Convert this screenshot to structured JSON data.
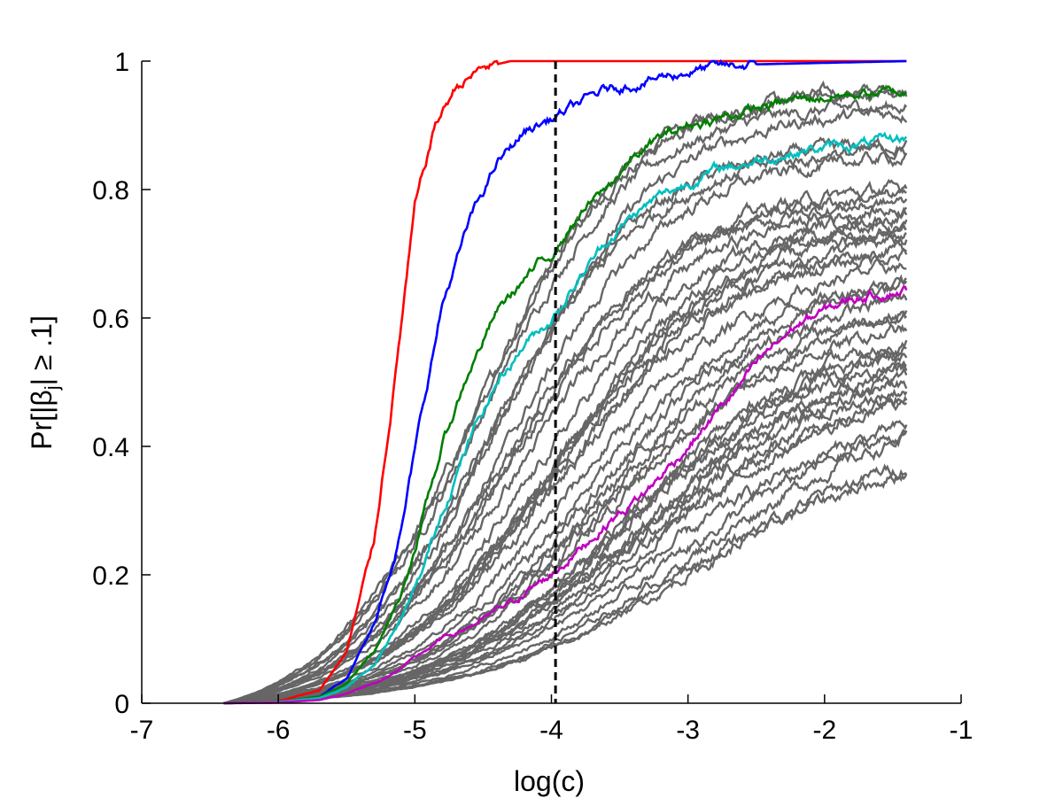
{
  "chart_data": {
    "type": "line",
    "title": "",
    "xlabel": "log(c)",
    "ylabel": "Pr[|β_j| ≥ .1]",
    "ylabel_parts": {
      "pre": "Pr[|",
      "beta": "β",
      "sub": "j",
      "post": "| ≥ .1]"
    },
    "xlim": [
      -7,
      -1
    ],
    "ylim": [
      0,
      1
    ],
    "xticks": [
      -7,
      -6,
      -5,
      -4,
      -3,
      -2,
      -1
    ],
    "xtick_labels": [
      "-7",
      "-6",
      "-5",
      "-4",
      "-3",
      "-2",
      "-1"
    ],
    "yticks": [
      0,
      0.2,
      0.4,
      0.6,
      0.8,
      1
    ],
    "ytick_labels": [
      "0",
      "0.2",
      "0.4",
      "0.6",
      "0.8",
      "1"
    ],
    "grid": false,
    "vline": {
      "x": -3.97,
      "style": "dashed",
      "color": "#000000"
    },
    "series": [
      {
        "color": "#ff0000",
        "points": [
          [
            -6.4,
            0
          ],
          [
            -6.0,
            0.003
          ],
          [
            -5.7,
            0.02
          ],
          [
            -5.5,
            0.08
          ],
          [
            -5.3,
            0.25
          ],
          [
            -5.15,
            0.5
          ],
          [
            -5.0,
            0.77
          ],
          [
            -4.85,
            0.9
          ],
          [
            -4.7,
            0.96
          ],
          [
            -4.5,
            0.99
          ],
          [
            -4.3,
            1.0
          ],
          [
            -3.8,
            1.0
          ],
          [
            -1.4,
            1.0
          ]
        ]
      },
      {
        "color": "#0000ff",
        "points": [
          [
            -6.4,
            0
          ],
          [
            -6.0,
            0.002
          ],
          [
            -5.7,
            0.01
          ],
          [
            -5.5,
            0.04
          ],
          [
            -5.3,
            0.12
          ],
          [
            -5.1,
            0.27
          ],
          [
            -4.95,
            0.45
          ],
          [
            -4.8,
            0.62
          ],
          [
            -4.6,
            0.75
          ],
          [
            -4.4,
            0.84
          ],
          [
            -4.2,
            0.89
          ],
          [
            -4.0,
            0.91
          ],
          [
            -3.6,
            0.955
          ],
          [
            -3.0,
            0.985
          ],
          [
            -2.5,
            0.995
          ],
          [
            -1.4,
            1.0
          ]
        ]
      },
      {
        "color": "#007f00",
        "points": [
          [
            -6.4,
            0
          ],
          [
            -6.0,
            0.002
          ],
          [
            -5.7,
            0.01
          ],
          [
            -5.5,
            0.03
          ],
          [
            -5.3,
            0.08
          ],
          [
            -5.1,
            0.17
          ],
          [
            -4.95,
            0.28
          ],
          [
            -4.8,
            0.4
          ],
          [
            -4.6,
            0.52
          ],
          [
            -4.4,
            0.61
          ],
          [
            -4.2,
            0.66
          ],
          [
            -4.0,
            0.7
          ],
          [
            -3.8,
            0.76
          ],
          [
            -3.6,
            0.8
          ],
          [
            -3.4,
            0.85
          ],
          [
            -3.2,
            0.88
          ],
          [
            -3.0,
            0.9
          ],
          [
            -2.8,
            0.91
          ],
          [
            -2.5,
            0.925
          ],
          [
            -2.2,
            0.94
          ],
          [
            -2.0,
            0.945
          ],
          [
            -1.7,
            0.95
          ],
          [
            -1.4,
            0.95
          ]
        ]
      },
      {
        "color": "#00bfbf",
        "points": [
          [
            -6.4,
            0
          ],
          [
            -6.0,
            0.002
          ],
          [
            -5.7,
            0.008
          ],
          [
            -5.5,
            0.025
          ],
          [
            -5.3,
            0.06
          ],
          [
            -5.1,
            0.13
          ],
          [
            -4.95,
            0.2
          ],
          [
            -4.8,
            0.3
          ],
          [
            -4.6,
            0.41
          ],
          [
            -4.4,
            0.5
          ],
          [
            -4.2,
            0.56
          ],
          [
            -4.0,
            0.6
          ],
          [
            -3.8,
            0.66
          ],
          [
            -3.6,
            0.72
          ],
          [
            -3.4,
            0.76
          ],
          [
            -3.2,
            0.79
          ],
          [
            -3.0,
            0.81
          ],
          [
            -2.8,
            0.83
          ],
          [
            -2.5,
            0.845
          ],
          [
            -2.2,
            0.86
          ],
          [
            -2.0,
            0.865
          ],
          [
            -1.7,
            0.87
          ],
          [
            -1.4,
            0.88
          ]
        ]
      },
      {
        "color": "#bf00bf",
        "points": [
          [
            -6.4,
            0
          ],
          [
            -6.0,
            0.001
          ],
          [
            -5.7,
            0.005
          ],
          [
            -5.5,
            0.015
          ],
          [
            -5.2,
            0.04
          ],
          [
            -5.0,
            0.07
          ],
          [
            -4.8,
            0.1
          ],
          [
            -4.5,
            0.13
          ],
          [
            -4.2,
            0.17
          ],
          [
            -4.0,
            0.2
          ],
          [
            -3.8,
            0.24
          ],
          [
            -3.6,
            0.28
          ],
          [
            -3.3,
            0.33
          ],
          [
            -3.0,
            0.4
          ],
          [
            -2.8,
            0.45
          ],
          [
            -2.6,
            0.5
          ],
          [
            -2.4,
            0.55
          ],
          [
            -2.2,
            0.59
          ],
          [
            -2.0,
            0.61
          ],
          [
            -1.8,
            0.63
          ],
          [
            -1.6,
            0.64
          ],
          [
            -1.4,
            0.645
          ]
        ]
      }
    ],
    "gray_series": {
      "color": "#666666",
      "count": 40,
      "x_range": [
        -6.4,
        -1.4
      ],
      "endpoints": [
        0.955,
        0.95,
        0.93,
        0.92,
        0.87,
        0.86,
        0.85,
        0.8,
        0.79,
        0.78,
        0.77,
        0.76,
        0.75,
        0.74,
        0.73,
        0.72,
        0.71,
        0.7,
        0.68,
        0.66,
        0.65,
        0.63,
        0.61,
        0.6,
        0.58,
        0.56,
        0.55,
        0.54,
        0.53,
        0.52,
        0.51,
        0.5,
        0.49,
        0.48,
        0.47,
        0.43,
        0.42,
        0.41,
        0.37,
        0.36
      ]
    }
  }
}
